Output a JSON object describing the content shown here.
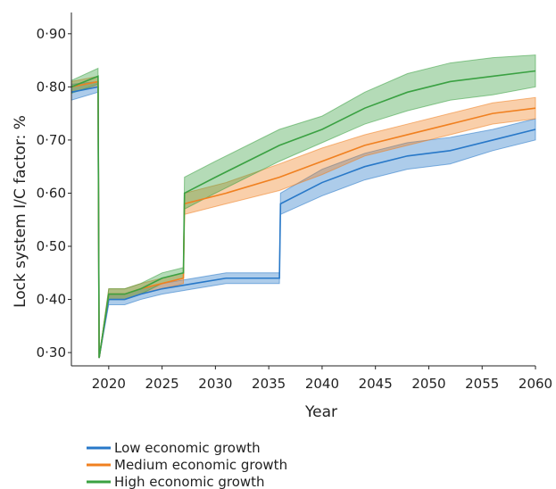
{
  "chart_data": {
    "type": "line",
    "xlabel": "Year",
    "ylabel": "Lock system I/C factor: %",
    "xlim": [
      2016.5,
      2060
    ],
    "ylim": [
      0.275,
      0.94
    ],
    "x_ticks": [
      2020,
      2025,
      2030,
      2035,
      2040,
      2045,
      2050,
      2055,
      2060
    ],
    "y_ticks": [
      0.3,
      0.4,
      0.5,
      0.6,
      0.7,
      0.8,
      0.9
    ],
    "x_tick_labels": [
      "2020",
      "2025",
      "2030",
      "2035",
      "2040",
      "2045",
      "2050",
      "2055",
      "2060"
    ],
    "y_tick_labels": [
      "0·30",
      "0·40",
      "0·50",
      "0·60",
      "0·70",
      "0·80",
      "0·90"
    ],
    "grid": false,
    "legend_position": "bottom-left",
    "series": [
      {
        "name": "Low economic growth",
        "color": "#2878c8",
        "x": [
          2016.5,
          2019,
          2019.1,
          2020,
          2021.5,
          2023,
          2025,
          2028,
          2031,
          2036,
          2036.1,
          2040,
          2044,
          2048,
          2052,
          2056,
          2060
        ],
        "y": [
          0.79,
          0.8,
          0.29,
          0.4,
          0.4,
          0.41,
          0.42,
          0.43,
          0.44,
          0.44,
          0.58,
          0.62,
          0.65,
          0.67,
          0.68,
          0.7,
          0.72
        ],
        "band": [
          0.015,
          0.01,
          0.0,
          0.01,
          0.01,
          0.01,
          0.01,
          0.01,
          0.01,
          0.01,
          0.02,
          0.025,
          0.025,
          0.025,
          0.025,
          0.02,
          0.02
        ]
      },
      {
        "name": "Medium economic growth",
        "color": "#f08020",
        "x": [
          2016.5,
          2019,
          2019.1,
          2020,
          2021.5,
          2023,
          2025,
          2027,
          2027.1,
          2031,
          2036,
          2040,
          2044,
          2048,
          2052,
          2056,
          2060
        ],
        "y": [
          0.8,
          0.81,
          0.29,
          0.41,
          0.41,
          0.42,
          0.43,
          0.44,
          0.58,
          0.6,
          0.63,
          0.66,
          0.69,
          0.71,
          0.73,
          0.75,
          0.76
        ],
        "band": [
          0.01,
          0.01,
          0.0,
          0.01,
          0.01,
          0.01,
          0.01,
          0.01,
          0.02,
          0.02,
          0.025,
          0.025,
          0.02,
          0.02,
          0.02,
          0.02,
          0.02
        ]
      },
      {
        "name": "High economic growth",
        "color": "#3aa142",
        "x": [
          2016.5,
          2019,
          2019.1,
          2020,
          2021.5,
          2023,
          2025,
          2027,
          2027.1,
          2030,
          2036,
          2040,
          2044,
          2048,
          2052,
          2056,
          2060
        ],
        "y": [
          0.8,
          0.82,
          0.29,
          0.41,
          0.41,
          0.42,
          0.44,
          0.45,
          0.6,
          0.63,
          0.69,
          0.72,
          0.76,
          0.79,
          0.81,
          0.82,
          0.83
        ],
        "band": [
          0.012,
          0.015,
          0.0,
          0.01,
          0.01,
          0.01,
          0.01,
          0.01,
          0.03,
          0.03,
          0.03,
          0.025,
          0.03,
          0.035,
          0.035,
          0.035,
          0.03
        ]
      }
    ]
  }
}
